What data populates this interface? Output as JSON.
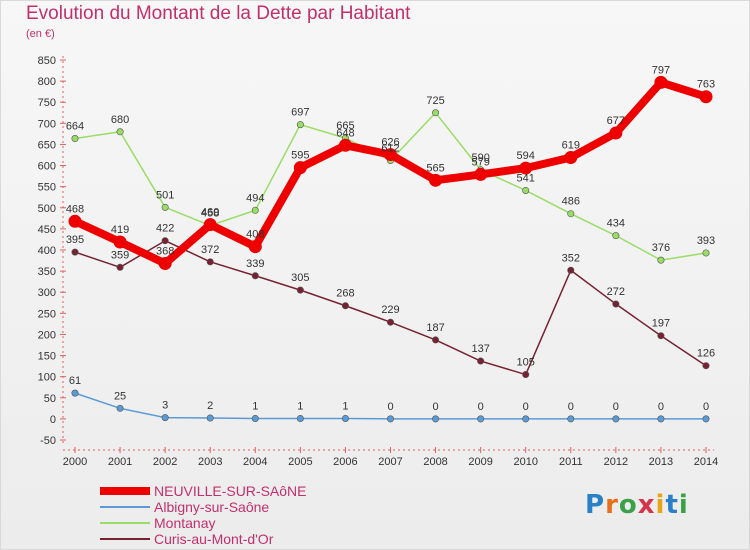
{
  "title": "Evolution du Montant de la Dette par Habitant",
  "subtitle": "(en €)",
  "logo": "Proxiti",
  "chart_data": {
    "type": "line",
    "x": [
      "2000",
      "2001",
      "2002",
      "2003",
      "2004",
      "2005",
      "2006",
      "2007",
      "2008",
      "2009",
      "2010",
      "2011",
      "2012",
      "2013",
      "2014"
    ],
    "ylim": [
      -50,
      850
    ],
    "yticks": [
      850,
      800,
      750,
      700,
      650,
      600,
      550,
      500,
      450,
      400,
      350,
      300,
      250,
      200,
      150,
      100,
      50,
      0,
      -50
    ],
    "grid": false,
    "legend_position": "bottom-left",
    "series": [
      {
        "name": "NEUVILLE-SUR-SAôNE",
        "color": "#ee0000",
        "values": [
          468,
          419,
          368,
          460,
          408,
          595,
          648,
          626,
          565,
          579,
          594,
          619,
          677,
          797,
          763
        ]
      },
      {
        "name": "Albigny-sur-Saône",
        "color": "#5b9bd5",
        "values": [
          61,
          25,
          3,
          2,
          1,
          1,
          1,
          0,
          0,
          0,
          0,
          0,
          0,
          0,
          0
        ]
      },
      {
        "name": "Montanay",
        "color": "#99dd66",
        "values": [
          664,
          680,
          501,
          458,
          494,
          697,
          665,
          612,
          725,
          590,
          541,
          486,
          434,
          376,
          393
        ]
      },
      {
        "name": "Curis-au-Mont-d'Or",
        "color": "#772233",
        "values": [
          395,
          359,
          422,
          372,
          339,
          305,
          268,
          229,
          187,
          137,
          105,
          352,
          272,
          197,
          126
        ]
      }
    ]
  }
}
